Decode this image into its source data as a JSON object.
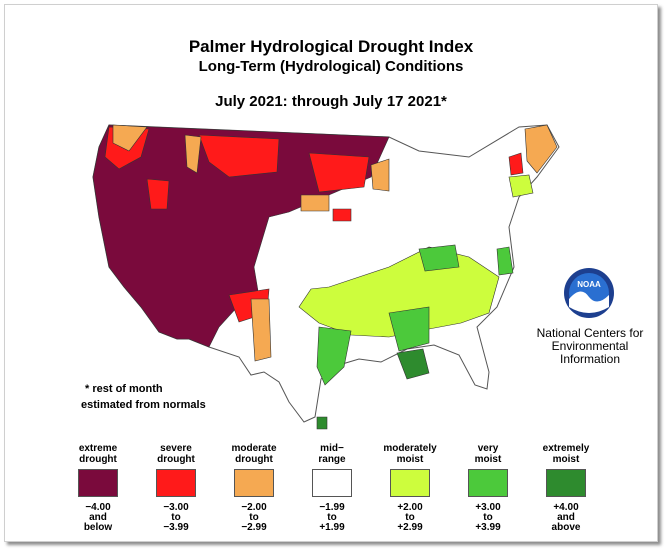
{
  "title": "Palmer Hydrological Drought Index",
  "subtitle": "Long-Term (Hydrological) Conditions",
  "period": "July 2021: through July 17 2021*",
  "note_line1": "* rest of month",
  "note_line2": "estimated from normals",
  "organization": [
    "National Centers for",
    "Environmental",
    "Information"
  ],
  "logo_text": "NOAA",
  "colors": {
    "extreme_drought": "#7a0a3c",
    "severe_drought": "#ff1a1a",
    "moderate_drought": "#f5a952",
    "mid_range": "#ffffff",
    "moderately_moist": "#cdfd3d",
    "very_moist": "#4cc93b",
    "extremely_moist": "#2e8b2e"
  },
  "legend": [
    {
      "label": [
        "extreme",
        "drought"
      ],
      "range": [
        "−4.00",
        "and",
        "below"
      ],
      "color": "#7a0a3c"
    },
    {
      "label": [
        "severe",
        "drought"
      ],
      "range": [
        "−3.00",
        "to",
        "−3.99"
      ],
      "color": "#ff1a1a"
    },
    {
      "label": [
        "moderate",
        "drought"
      ],
      "range": [
        "−2.00",
        "to",
        "−2.99"
      ],
      "color": "#f5a952"
    },
    {
      "label": [
        "mid−",
        "range"
      ],
      "range": [
        "−1.99",
        "to",
        "+1.99"
      ],
      "color": "#ffffff"
    },
    {
      "label": [
        "moderately",
        "moist"
      ],
      "range": [
        "+2.00",
        "to",
        "+2.99"
      ],
      "color": "#cdfd3d"
    },
    {
      "label": [
        "very",
        "moist"
      ],
      "range": [
        "+3.00",
        "to",
        "+3.99"
      ],
      "color": "#4cc93b"
    },
    {
      "label": [
        "extremely",
        "moist"
      ],
      "range": [
        "+4.00",
        "and",
        "above"
      ],
      "color": "#2e8b2e"
    }
  ]
}
